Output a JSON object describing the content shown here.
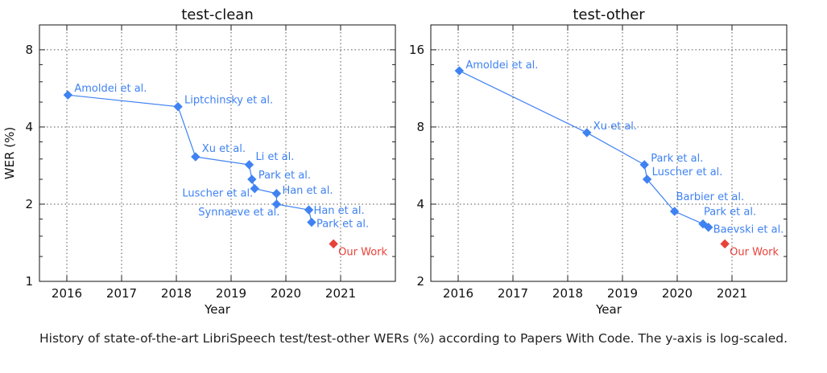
{
  "caption": "History of state-of-the-art LibriSpeech test/test-other WERs (%) according to Papers With Code. The y-axis is log-scaled.",
  "colors": {
    "series": "#3f82f2",
    "our_work": "#e8413a",
    "grid": "#555555",
    "text": "#111111"
  },
  "chart_data": [
    {
      "type": "line",
      "title": "test-clean",
      "xlabel": "Year",
      "ylabel": "WER (%)",
      "xscale": "linear",
      "yscale": "log2",
      "xlim": [
        2015.5,
        2022.0
      ],
      "ylim": [
        1,
        10
      ],
      "xticks": [
        2016,
        2017,
        2018,
        2019,
        2020,
        2021
      ],
      "yticks": [
        1,
        2,
        4,
        8
      ],
      "grid": true,
      "series": [
        {
          "marker": "diamond",
          "points": [
            {
              "x": 2016.02,
              "y": 5.33,
              "label": "Amoldei et al."
            },
            {
              "x": 2018.03,
              "y": 4.8,
              "label": "Liptchinsky et al."
            },
            {
              "x": 2018.35,
              "y": 3.06,
              "label": "Xu et al."
            },
            {
              "x": 2019.33,
              "y": 2.85,
              "label": "Li et al."
            },
            {
              "x": 2019.38,
              "y": 2.5,
              "label": "Park et al."
            },
            {
              "x": 2019.43,
              "y": 2.3,
              "label": "Luscher et al."
            },
            {
              "x": 2019.83,
              "y": 2.2,
              "label": "Han et al."
            },
            {
              "x": 2019.83,
              "y": 2.0,
              "label": "Synnaeve et al."
            },
            {
              "x": 2020.42,
              "y": 1.9,
              "label": "Han et al."
            },
            {
              "x": 2020.47,
              "y": 1.7,
              "label": "Park et al."
            }
          ]
        },
        {
          "marker": "diamond",
          "points": [
            {
              "x": 2020.87,
              "y": 1.4,
              "label": "Our Work"
            }
          ]
        }
      ]
    },
    {
      "type": "line",
      "title": "test-other",
      "xlabel": "Year",
      "ylabel": "",
      "xscale": "linear",
      "yscale": "log2",
      "xlim": [
        2015.5,
        2022.0
      ],
      "ylim": [
        2,
        20
      ],
      "xticks": [
        2016,
        2017,
        2018,
        2019,
        2020,
        2021
      ],
      "yticks": [
        2,
        4,
        8,
        16
      ],
      "grid": true,
      "series": [
        {
          "marker": "diamond",
          "points": [
            {
              "x": 2016.02,
              "y": 13.25,
              "label": "Amoldei et al."
            },
            {
              "x": 2018.35,
              "y": 7.6,
              "label": "Xu et al."
            },
            {
              "x": 2019.4,
              "y": 5.7,
              "label": "Park et al."
            },
            {
              "x": 2019.45,
              "y": 5.0,
              "label": "Luscher et al."
            },
            {
              "x": 2019.95,
              "y": 3.75,
              "label": "Barbier et al."
            },
            {
              "x": 2020.47,
              "y": 3.35,
              "label": "Park et al."
            },
            {
              "x": 2020.57,
              "y": 3.25,
              "label": "Baevski et al."
            }
          ]
        },
        {
          "marker": "diamond",
          "points": [
            {
              "x": 2020.87,
              "y": 2.8,
              "label": "Our Work"
            }
          ]
        }
      ]
    }
  ]
}
